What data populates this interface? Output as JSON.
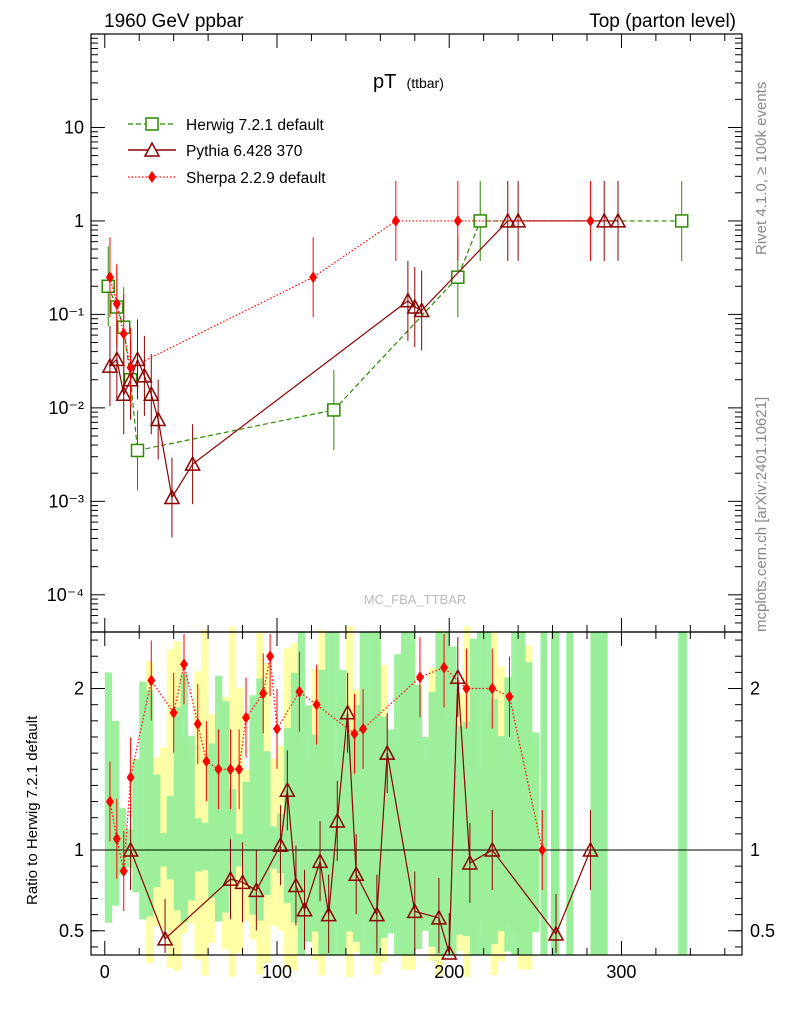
{
  "header": {
    "left": "1960 GeV ppbar",
    "right": "Top (parton level)"
  },
  "side_labels": {
    "rivet": "Rivet 4.1.0, ≥ 100k events",
    "mcplots": "mcplots.cern.ch [arXiv:2401.10621]"
  },
  "watermark": "MC_FBA_TTBAR",
  "chart_data": [
    {
      "type": "scatter",
      "panel": "main",
      "title": "pT",
      "title_sub": "(ttbar)",
      "xlabel": "",
      "ylabel": "",
      "yscale": "log",
      "xlim": [
        -8,
        370
      ],
      "ylim": [
        4e-05,
        100
      ],
      "y_ticks": [
        {
          "label": "10",
          "value": 10
        },
        {
          "label": "1",
          "value": 1
        },
        {
          "label": "10⁻¹",
          "value": 0.1
        },
        {
          "label": "10⁻²",
          "value": 0.01
        },
        {
          "label": "10⁻³",
          "value": 0.001
        },
        {
          "label": "10⁻⁴",
          "value": 0.0001
        }
      ],
      "legend": [
        "Herwig 7.2.1 default",
        "Pythia 6.428 370",
        "Sherpa 2.2.9 default"
      ],
      "series": [
        {
          "name": "Herwig 7.2.1 default",
          "color": "#2b8a00",
          "marker": "square",
          "x": [
            2,
            7,
            11,
            15,
            19,
            133,
            205,
            218,
            335
          ],
          "y": [
            0.2,
            0.12,
            0.073,
            0.02,
            0.0035,
            0.0095,
            0.25,
            1.0,
            1.0
          ]
        },
        {
          "name": "Pythia 6.428 370",
          "color": "#8b0000",
          "marker": "triangle",
          "x": [
            3,
            7,
            11,
            15,
            19,
            23,
            27,
            31,
            39,
            51,
            176,
            180,
            184,
            234,
            240,
            290,
            298
          ],
          "y": [
            0.028,
            0.033,
            0.014,
            0.02,
            0.033,
            0.022,
            0.014,
            0.0075,
            0.0011,
            0.0025,
            0.14,
            0.12,
            0.11,
            1.0,
            1.0,
            1.0,
            1.0
          ]
        },
        {
          "name": "Sherpa 2.2.9 default",
          "color": "#ff0000",
          "marker": "diamond",
          "x": [
            3,
            7,
            11,
            15,
            121,
            169,
            205,
            282
          ],
          "y": [
            0.25,
            0.13,
            0.062,
            0.027,
            0.25,
            1.0,
            1.0,
            1.0
          ]
        }
      ]
    },
    {
      "type": "scatter",
      "panel": "ratio",
      "ylabel": "Ratio to Herwig 7.2.1 default",
      "xlim": [
        -8,
        370
      ],
      "ylim": [
        0.35,
        2.35
      ],
      "x_ticks": [
        0,
        100,
        200,
        300
      ],
      "y_ticks": [
        0.5,
        1,
        2
      ],
      "reference": 1,
      "series": [
        {
          "name": "Pythia 6.428 370",
          "color": "#8b0000",
          "marker": "triangle",
          "x": [
            15,
            35,
            73,
            80,
            88,
            102,
            106,
            111,
            116,
            125,
            130,
            135,
            141,
            146,
            158,
            164,
            180,
            194,
            200,
            205,
            212,
            225,
            262,
            282
          ],
          "y": [
            1.0,
            0.45,
            0.82,
            0.8,
            0.75,
            1.03,
            1.37,
            0.78,
            0.63,
            0.93,
            0.6,
            1.18,
            1.85,
            0.85,
            0.6,
            1.6,
            0.62,
            0.58,
            0.33,
            2.07,
            0.92,
            1.0,
            0.48,
            1.0
          ]
        },
        {
          "name": "Sherpa 2.2.9 default",
          "color": "#ff0000",
          "marker": "diamond",
          "x": [
            3,
            7,
            11,
            15,
            27,
            40,
            46,
            54,
            59,
            66,
            73,
            78,
            82,
            92,
            96,
            100,
            113,
            123,
            145,
            150,
            183,
            197,
            210,
            225,
            235,
            254
          ],
          "y": [
            1.3,
            1.07,
            0.87,
            1.45,
            2.05,
            1.85,
            2.15,
            1.78,
            1.55,
            1.5,
            1.5,
            1.5,
            1.82,
            1.97,
            2.2,
            1.75,
            1.98,
            1.9,
            1.72,
            1.75,
            2.07,
            2.13,
            2.0,
            2.0,
            1.95,
            1.0
          ]
        }
      ]
    }
  ]
}
